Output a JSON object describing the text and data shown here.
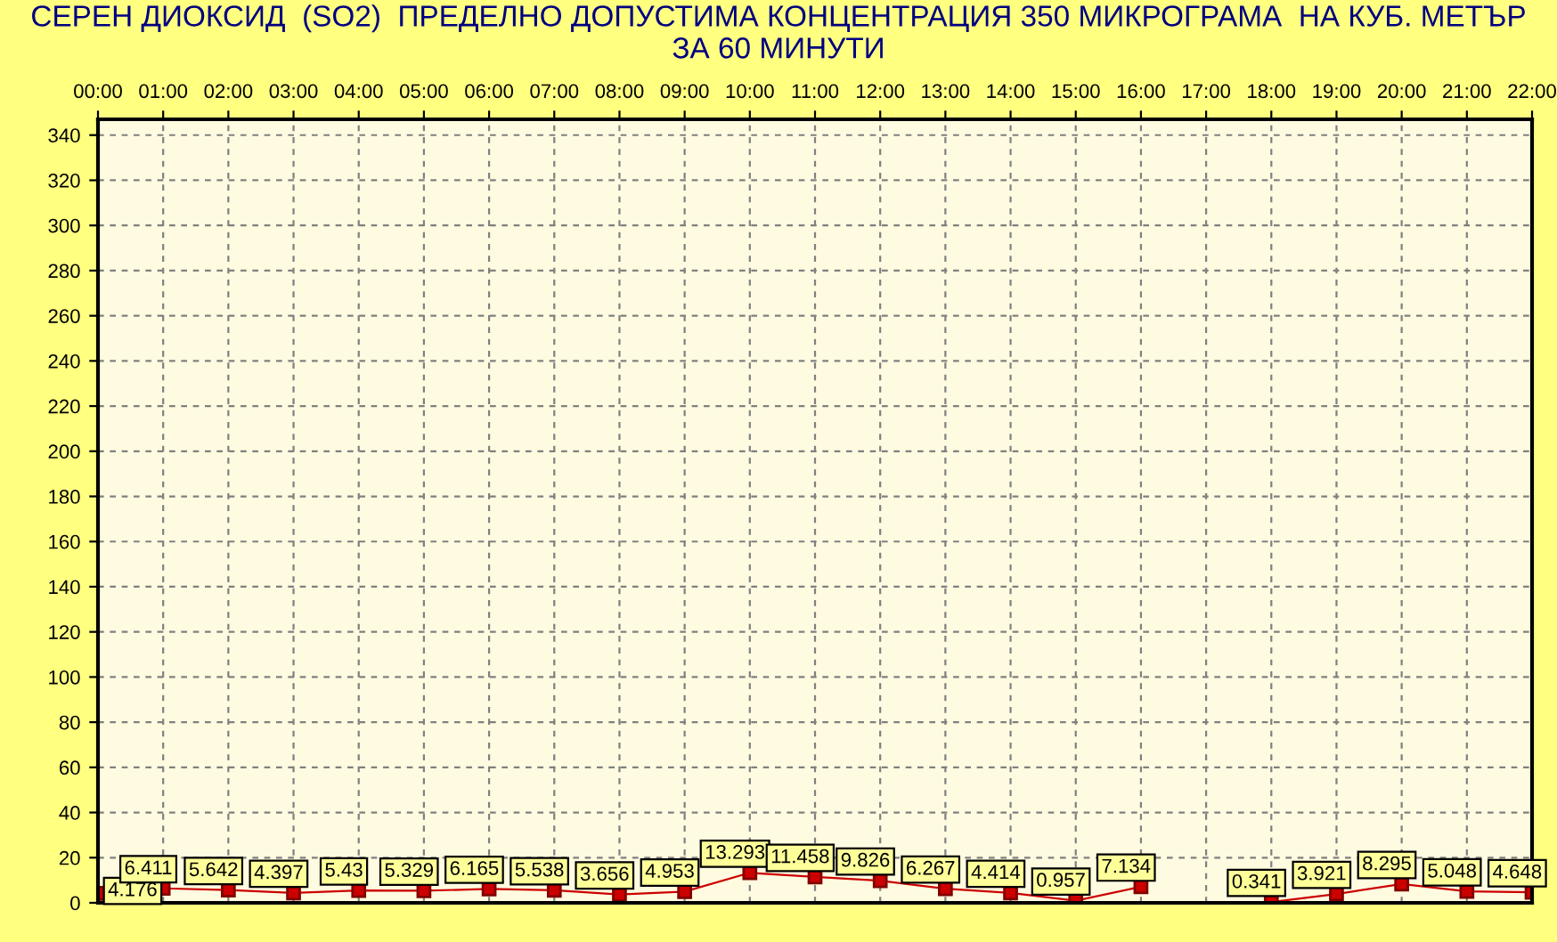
{
  "chart_data": {
    "type": "line",
    "title": "СЕРЕН ДИОКСИД  (SO2)  ПРЕДЕЛНО ДОПУСТИМА КОНЦЕНТРАЦИЯ 350 МИКРОГРАМА  НА КУБ. МЕТЪР\nЗА 60 МИНУТИ",
    "categories": [
      "00:00",
      "01:00",
      "02:00",
      "03:00",
      "04:00",
      "05:00",
      "06:00",
      "07:00",
      "08:00",
      "09:00",
      "10:00",
      "11:00",
      "12:00",
      "13:00",
      "14:00",
      "15:00",
      "16:00",
      "17:00",
      "18:00",
      "19:00",
      "20:00",
      "21:00",
      "22:00"
    ],
    "series": [
      {
        "color": "#cc0000",
        "values": [
          4.176,
          6.411,
          5.642,
          4.397,
          5.43,
          5.329,
          6.165,
          5.538,
          3.656,
          4.953,
          13.293,
          11.458,
          9.826,
          6.267,
          4.414,
          0.957,
          7.134,
          null,
          0.341,
          3.921,
          8.295,
          5.048,
          4.648
        ]
      }
    ],
    "ylim": [
      0,
      347
    ],
    "yticks": [
      0,
      20,
      40,
      60,
      80,
      100,
      120,
      140,
      160,
      180,
      200,
      220,
      240,
      260,
      280,
      300,
      320,
      340
    ],
    "grid": true,
    "marker": "square",
    "line_style": "solid",
    "data_labels": true
  }
}
